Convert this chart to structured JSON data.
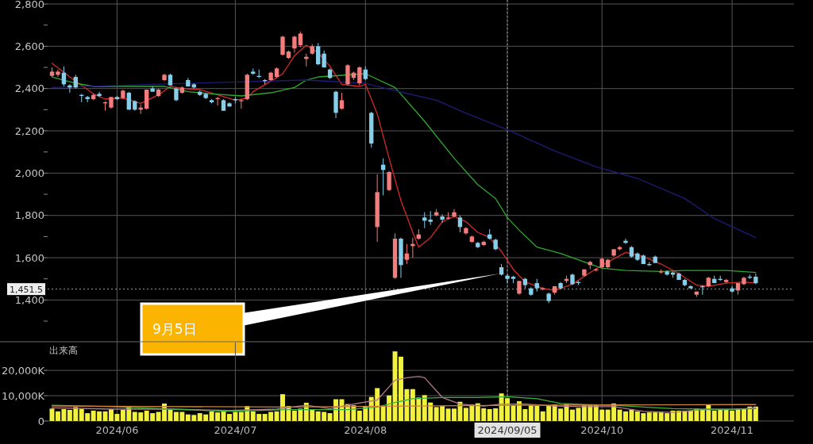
{
  "chart_data": [
    {
      "type": "candlestick",
      "categories": [
        null,
        null,
        null,
        null,
        null,
        null,
        null,
        null,
        null,
        null,
        null,
        "2024/06",
        null,
        null,
        null,
        null,
        null,
        null,
        null,
        null,
        null,
        null,
        null,
        null,
        null,
        null,
        null,
        null,
        null,
        null,
        null,
        "2024/07",
        null,
        null,
        null,
        null,
        null,
        null,
        null,
        null,
        null,
        null,
        null,
        null,
        null,
        null,
        null,
        null,
        null,
        null,
        null,
        null,
        null,
        "2024/08",
        null,
        null,
        null,
        null,
        null,
        null,
        null,
        null,
        null,
        null,
        null,
        null,
        null,
        null,
        null,
        null,
        null,
        null,
        null,
        null,
        null,
        null,
        null,
        "2024/09/05",
        null,
        null,
        null,
        null,
        null,
        null,
        null,
        null,
        null,
        null,
        null,
        null,
        null,
        null,
        null,
        "2024/10",
        null,
        null,
        null,
        null,
        null,
        null,
        null,
        null,
        null,
        null,
        null,
        null,
        null,
        null,
        null,
        null,
        null,
        null,
        null,
        null,
        null,
        "2024/11",
        null,
        null,
        null,
        null
      ],
      "ohlc": [
        [
          2460,
          2500,
          2455,
          2480
        ],
        [
          2465,
          2490,
          2455,
          2480
        ],
        [
          2475,
          2505,
          2410,
          2420
        ],
        [
          2415,
          2420,
          2380,
          2405
        ],
        [
          2455,
          2465,
          2400,
          2405
        ],
        [
          2370,
          2375,
          2335,
          2365
        ],
        [
          2360,
          2365,
          2335,
          2350
        ],
        [
          2350,
          2375,
          2345,
          2370
        ],
        [
          2375,
          2385,
          2360,
          2365
        ],
        [
          2330,
          2340,
          2295,
          2335
        ],
        [
          2310,
          2360,
          2305,
          2360
        ],
        [
          2360,
          2365,
          2345,
          2350
        ],
        [
          2355,
          2395,
          2350,
          2390
        ],
        [
          2380,
          2385,
          2300,
          2300
        ],
        [
          2340,
          2345,
          2295,
          2300
        ],
        [
          2300,
          2325,
          2280,
          2310
        ],
        [
          2305,
          2395,
          2300,
          2395
        ],
        [
          2400,
          2410,
          2385,
          2385
        ],
        [
          2365,
          2400,
          2360,
          2395
        ],
        [
          2440,
          2470,
          2435,
          2465
        ],
        [
          2465,
          2470,
          2415,
          2415
        ],
        [
          2400,
          2405,
          2340,
          2345
        ],
        [
          2380,
          2410,
          2375,
          2405
        ],
        [
          2440,
          2450,
          2410,
          2410
        ],
        [
          2420,
          2425,
          2400,
          2405
        ],
        [
          2385,
          2390,
          2365,
          2370
        ],
        [
          2375,
          2380,
          2350,
          2355
        ],
        [
          2345,
          2350,
          2330,
          2335
        ],
        [
          2350,
          2360,
          2320,
          2355
        ],
        [
          2345,
          2350,
          2295,
          2295
        ],
        [
          2330,
          2335,
          2315,
          2315
        ],
        [
          2350,
          2360,
          2330,
          2345
        ],
        [
          2340,
          2350,
          2305,
          2345
        ],
        [
          2350,
          2470,
          2345,
          2465
        ],
        [
          2480,
          2495,
          2465,
          2470
        ],
        [
          2460,
          2490,
          2450,
          2455
        ],
        [
          2440,
          2445,
          2420,
          2435
        ],
        [
          2440,
          2480,
          2435,
          2475
        ],
        [
          2455,
          2500,
          2450,
          2495
        ],
        [
          2560,
          2650,
          2555,
          2645
        ],
        [
          2545,
          2580,
          2540,
          2575
        ],
        [
          2590,
          2650,
          2570,
          2645
        ],
        [
          2605,
          2670,
          2595,
          2660
        ],
        [
          2540,
          2565,
          2505,
          2550
        ],
        [
          2565,
          2610,
          2560,
          2600
        ],
        [
          2600,
          2615,
          2510,
          2515
        ],
        [
          2565,
          2580,
          2500,
          2500
        ],
        [
          2490,
          2495,
          2445,
          2450
        ],
        [
          2385,
          2390,
          2260,
          2285
        ],
        [
          2305,
          2380,
          2300,
          2345
        ],
        [
          2420,
          2515,
          2415,
          2510
        ],
        [
          2450,
          2480,
          2440,
          2475
        ],
        [
          2425,
          2505,
          2415,
          2500
        ],
        [
          2490,
          2505,
          2440,
          2445
        ],
        [
          2285,
          2290,
          2120,
          2140
        ],
        [
          1745,
          1995,
          1675,
          1910
        ],
        [
          2040,
          2070,
          1895,
          2015
        ],
        [
          1920,
          2010,
          1915,
          2005
        ],
        [
          1505,
          1715,
          1500,
          1690
        ],
        [
          1690,
          1695,
          1505,
          1565
        ],
        [
          1590,
          1665,
          1570,
          1620
        ],
        [
          1655,
          1695,
          1600,
          1665
        ],
        [
          1690,
          1735,
          1685,
          1710
        ],
        [
          1790,
          1815,
          1740,
          1775
        ],
        [
          1780,
          1820,
          1755,
          1770
        ],
        [
          1800,
          1830,
          1795,
          1815
        ],
        [
          1795,
          1805,
          1765,
          1780
        ],
        [
          1785,
          1815,
          1780,
          1790
        ],
        [
          1795,
          1830,
          1790,
          1815
        ],
        [
          1790,
          1800,
          1720,
          1745
        ],
        [
          1715,
          1745,
          1710,
          1740
        ],
        [
          1675,
          1705,
          1670,
          1700
        ],
        [
          1670,
          1675,
          1645,
          1650
        ],
        [
          1660,
          1680,
          1655,
          1675
        ],
        [
          1710,
          1735,
          1685,
          1690
        ],
        [
          1685,
          1690,
          1635,
          1640
        ],
        [
          1555,
          1570,
          1515,
          1520
        ],
        [
          1515,
          1520,
          1480,
          1500
        ],
        [
          1510,
          1515,
          1480,
          1500
        ],
        [
          1430,
          1490,
          1425,
          1490
        ],
        [
          1500,
          1505,
          1455,
          1470
        ],
        [
          1455,
          1460,
          1420,
          1425
        ],
        [
          1480,
          1500,
          1440,
          1455
        ],
        [
          1450,
          1460,
          1445,
          1455
        ],
        [
          1430,
          1435,
          1385,
          1395
        ],
        [
          1435,
          1465,
          1425,
          1465
        ],
        [
          1480,
          1485,
          1450,
          1455
        ],
        [
          1490,
          1515,
          1480,
          1500
        ],
        [
          1520,
          1525,
          1470,
          1475
        ],
        [
          1485,
          1490,
          1470,
          1480
        ],
        [
          1515,
          1545,
          1510,
          1545
        ],
        [
          1565,
          1585,
          1545,
          1580
        ],
        [
          1540,
          1550,
          1535,
          1545
        ],
        [
          1555,
          1600,
          1550,
          1595
        ],
        [
          1555,
          1595,
          1550,
          1590
        ],
        [
          1610,
          1640,
          1605,
          1640
        ],
        [
          1640,
          1655,
          1635,
          1650
        ],
        [
          1680,
          1690,
          1665,
          1670
        ],
        [
          1650,
          1655,
          1600,
          1605
        ],
        [
          1620,
          1625,
          1585,
          1590
        ],
        [
          1610,
          1615,
          1570,
          1570
        ],
        [
          1570,
          1580,
          1560,
          1565
        ],
        [
          1605,
          1610,
          1575,
          1575
        ],
        [
          1530,
          1545,
          1525,
          1535
        ],
        [
          1535,
          1540,
          1515,
          1520
        ],
        [
          1530,
          1535,
          1505,
          1520
        ],
        [
          1525,
          1530,
          1495,
          1495
        ],
        [
          1495,
          1500,
          1465,
          1470
        ],
        [
          1465,
          1470,
          1455,
          1455
        ],
        [
          1425,
          1440,
          1415,
          1440
        ],
        [
          1465,
          1470,
          1425,
          1460
        ],
        [
          1465,
          1510,
          1460,
          1505
        ],
        [
          1500,
          1515,
          1480,
          1480
        ],
        [
          1500,
          1515,
          1490,
          1495
        ],
        [
          1485,
          1500,
          1480,
          1495
        ],
        [
          1455,
          1465,
          1435,
          1440
        ],
        [
          1445,
          1480,
          1425,
          1480
        ],
        [
          1475,
          1510,
          1470,
          1505
        ],
        [
          1510,
          1520,
          1500,
          1505
        ],
        [
          1510,
          1525,
          1475,
          1480
        ]
      ],
      "colors": [
        "#f47c7c",
        "#f47c7c",
        "#87ceeb",
        "#87ceeb",
        "#87ceeb",
        "#87ceeb",
        "#87ceeb",
        "#f47c7c",
        "#87ceeb",
        "#f47c7c",
        "#f47c7c",
        "#87ceeb",
        "#f47c7c",
        "#87ceeb",
        "#87ceeb",
        "#f47c7c",
        "#f47c7c",
        "#87ceeb",
        "#f47c7c",
        "#f47c7c",
        "#87ceeb",
        "#87ceeb",
        "#f47c7c",
        "#87ceeb",
        "#87ceeb",
        "#87ceeb",
        "#87ceeb",
        "#87ceeb",
        "#f47c7c",
        "#87ceeb",
        "#87ceeb",
        "#87ceeb",
        "#f47c7c",
        "#f47c7c",
        "#87ceeb",
        "#87ceeb",
        "#87ceeb",
        "#f47c7c",
        "#f47c7c",
        "#f47c7c",
        "#f47c7c",
        "#f47c7c",
        "#f47c7c",
        "#f47c7c",
        "#f47c7c",
        "#87ceeb",
        "#87ceeb",
        "#87ceeb",
        "#87ceeb",
        "#f47c7c",
        "#f47c7c",
        "#f47c7c",
        "#f47c7c",
        "#87ceeb",
        "#87ceeb",
        "#f47c7c",
        "#87ceeb",
        "#f47c7c",
        "#f47c7c",
        "#87ceeb",
        "#f47c7c",
        "#f47c7c",
        "#f47c7c",
        "#87ceeb",
        "#87ceeb",
        "#f47c7c",
        "#87ceeb",
        "#f47c7c",
        "#f47c7c",
        "#87ceeb",
        "#f47c7c",
        "#f47c7c",
        "#87ceeb",
        "#f47c7c",
        "#87ceeb",
        "#87ceeb",
        "#87ceeb",
        "#87ceeb",
        "#87ceeb",
        "#f47c7c",
        "#87ceeb",
        "#87ceeb",
        "#87ceeb",
        "#f47c7c",
        "#87ceeb",
        "#f47c7c",
        "#87ceeb",
        "#f47c7c",
        "#87ceeb",
        "#87ceeb",
        "#f47c7c",
        "#f47c7c",
        "#f47c7c",
        "#f47c7c",
        "#f47c7c",
        "#f47c7c",
        "#f47c7c",
        "#87ceeb",
        "#87ceeb",
        "#87ceeb",
        "#87ceeb",
        "#87ceeb",
        "#87ceeb",
        "#f47c7c",
        "#87ceeb",
        "#87ceeb",
        "#87ceeb",
        "#87ceeb",
        "#87ceeb",
        "#f47c7c",
        "#87ceeb",
        "#f47c7c",
        "#87ceeb",
        "#87ceeb",
        "#f47c7c",
        "#87ceeb",
        "#f47c7c",
        "#f47c7c",
        "#87ceeb",
        "#87ceeb"
      ],
      "series": [
        {
          "type": "line",
          "color": "#d42a2a",
          "values": [
            2520,
            null,
            null,
            2455,
            null,
            null,
            null,
            2375,
            null,
            2350,
            null,
            null,
            2355,
            null,
            null,
            2330,
            null,
            null,
            2370,
            null,
            2410,
            null,
            2400,
            null,
            null,
            2395,
            null,
            null,
            2370,
            null,
            null,
            2345,
            null,
            2355,
            2385,
            null,
            null,
            2435,
            null,
            2470,
            null,
            2555,
            null,
            2605,
            null,
            2570,
            null,
            2505,
            null,
            2420,
            null,
            null,
            2410,
            2420,
            null,
            2280,
            null,
            2070,
            null,
            1870,
            null,
            1720,
            1650,
            null,
            1695,
            null,
            1770,
            null,
            1795,
            null,
            1770,
            null,
            1720,
            null,
            1695,
            null,
            1630,
            null,
            1545,
            null,
            1485,
            null,
            null,
            1455,
            null,
            1445,
            null,
            null,
            1475,
            null,
            null,
            1530,
            null,
            null,
            1580,
            null,
            null,
            1625,
            null,
            null,
            1605,
            null,
            null,
            1570,
            null,
            null,
            1525,
            null,
            null,
            1470,
            null,
            1465,
            null,
            null,
            1480,
            null,
            null,
            1485,
            null,
            1480
          ]
        },
        {
          "type": "line",
          "color": "#2fa82f",
          "values": [
            2455,
            null,
            null,
            null,
            2425,
            null,
            null,
            2410,
            null,
            null,
            null,
            null,
            null,
            null,
            null,
            null,
            null,
            null,
            null,
            2410,
            null,
            null,
            null,
            2385,
            null,
            null,
            null,
            2375,
            null,
            null,
            null,
            null,
            2365,
            null,
            null,
            null,
            null,
            2380,
            null,
            null,
            null,
            2405,
            null,
            2440,
            null,
            2455,
            null,
            null,
            null,
            null,
            null,
            null,
            null,
            2470,
            null,
            null,
            null,
            null,
            2405,
            null,
            null,
            null,
            null,
            2245,
            null,
            null,
            null,
            null,
            2070,
            null,
            null,
            null,
            1945,
            null,
            null,
            1880,
            null,
            1790,
            null,
            1730,
            null,
            null,
            1650,
            null,
            null,
            null,
            1620,
            null,
            null,
            null,
            null,
            null,
            null,
            1550,
            null,
            null,
            null,
            1540,
            null,
            null,
            null,
            null,
            null,
            1535,
            null,
            null,
            null,
            1540,
            null,
            null,
            null,
            null,
            null,
            null,
            1540,
            null,
            null,
            null,
            null,
            1530
          ]
        },
        {
          "type": "line",
          "color": "#1c1c78",
          "values": [
            2405,
            null,
            null,
            null,
            null,
            null,
            null,
            null,
            null,
            null,
            null,
            null,
            null,
            null,
            null,
            null,
            null,
            2420,
            null,
            null,
            null,
            null,
            null,
            null,
            null,
            null,
            null,
            null,
            null,
            null,
            2430,
            null,
            null,
            null,
            null,
            null,
            null,
            null,
            null,
            null,
            null,
            null,
            null,
            2440,
            null,
            null,
            null,
            null,
            null,
            null,
            null,
            null,
            null,
            2425,
            null,
            null,
            null,
            null,
            2390,
            null,
            null,
            null,
            null,
            null,
            null,
            2345,
            null,
            null,
            null,
            2295,
            null,
            null,
            null,
            null,
            null,
            null,
            null,
            2205,
            null,
            null,
            null,
            null,
            null,
            null,
            null,
            2105,
            null,
            null,
            null,
            null,
            null,
            null,
            2030,
            null,
            null,
            null,
            null,
            null,
            null,
            1975,
            null,
            null,
            null,
            null,
            null,
            null,
            null,
            1880,
            null,
            null,
            null,
            null,
            1785,
            null,
            null,
            null,
            null,
            null,
            null,
            1695
          ]
        }
      ],
      "ylim": [
        1200,
        2800
      ],
      "yticks": [
        {
          "value": 1300,
          "label": null
        },
        {
          "value": 1400,
          "label": "1,400"
        },
        {
          "value": 1500,
          "label": null
        },
        {
          "value": 1600,
          "label": "1,600"
        },
        {
          "value": 1700,
          "label": null
        },
        {
          "value": 1800,
          "label": "1,800"
        },
        {
          "value": 1900,
          "label": null
        },
        {
          "value": 2000,
          "label": "2,000"
        },
        {
          "value": 2100,
          "label": null
        },
        {
          "value": 2200,
          "label": "2,200"
        },
        {
          "value": 2300,
          "label": null
        },
        {
          "value": 2400,
          "label": "2,400"
        },
        {
          "value": 2500,
          "label": null
        },
        {
          "value": 2600,
          "label": "2,600"
        },
        {
          "value": 2700,
          "label": null
        },
        {
          "value": 2800,
          "label": "2,800"
        }
      ],
      "grid": true,
      "tick_labels": "y",
      "ref_lines": [
        {
          "axis": "y",
          "value": 1451.5,
          "label": "1,451.5",
          "line_style": "dotted",
          "color": "#9a9a9a"
        },
        {
          "axis": "x",
          "value": "2024/09/05",
          "line_style": "dotted",
          "color": "#9a9a9a"
        }
      ],
      "annotations": [
        "9月5日"
      ]
    },
    {
      "type": "bar",
      "title": "出来高",
      "categories": [
        null,
        null,
        null,
        null,
        null,
        null,
        null,
        null,
        null,
        null,
        null,
        "2024/06",
        null,
        null,
        null,
        null,
        null,
        null,
        null,
        null,
        null,
        null,
        null,
        null,
        null,
        null,
        null,
        null,
        null,
        null,
        null,
        "2024/07",
        null,
        null,
        null,
        null,
        null,
        null,
        null,
        null,
        null,
        null,
        null,
        null,
        null,
        null,
        null,
        null,
        null,
        null,
        null,
        null,
        null,
        "2024/08",
        null,
        null,
        null,
        null,
        null,
        null,
        null,
        null,
        null,
        null,
        null,
        null,
        null,
        null,
        null,
        null,
        null,
        null,
        null,
        null,
        null,
        null,
        null,
        "2024/09/05",
        null,
        null,
        null,
        null,
        null,
        null,
        null,
        null,
        null,
        null,
        null,
        null,
        null,
        null,
        null,
        "2024/10",
        null,
        null,
        null,
        null,
        null,
        null,
        null,
        null,
        null,
        null,
        null,
        null,
        null,
        null,
        null,
        null,
        null,
        null,
        null,
        null,
        null,
        "2024/11",
        null,
        null,
        null,
        null
      ],
      "series": [
        {
          "type": "bar",
          "color": "#f2f23c",
          "values": [
            4900,
            3800,
            4700,
            4400,
            5500,
            4700,
            3100,
            4100,
            3800,
            3800,
            4700,
            2800,
            4400,
            5500,
            3600,
            3400,
            4100,
            3100,
            3600,
            6900,
            4400,
            3600,
            3600,
            2600,
            2400,
            3100,
            2600,
            3800,
            3400,
            4100,
            2800,
            3600,
            3600,
            5900,
            3800,
            2800,
            2800,
            3600,
            3800,
            10600,
            5900,
            4100,
            4900,
            7200,
            4700,
            3800,
            3600,
            3100,
            8600,
            8600,
            6700,
            6200,
            4100,
            5900,
            9500,
            13000,
            5700,
            10100,
            27500,
            25400,
            12600,
            12600,
            9300,
            10200,
            7300,
            5500,
            5900,
            4900,
            4900,
            7600,
            5200,
            6500,
            7000,
            5000,
            4700,
            5000,
            10900,
            9000,
            6200,
            7800,
            4700,
            6200,
            6000,
            3800,
            6200,
            6500,
            4900,
            6700,
            4500,
            5200,
            6200,
            6200,
            6200,
            4500,
            4500,
            6900,
            4500,
            3800,
            4500,
            3800,
            3100,
            3400,
            3400,
            3400,
            3100,
            4100,
            4100,
            4100,
            4100,
            4900,
            4500,
            6500,
            4100,
            4500,
            4500,
            4100,
            4900,
            4900,
            5700,
            5700
          ]
        },
        {
          "type": "line",
          "color": "#b4788c",
          "values": [
            5200,
            null,
            null,
            null,
            null,
            null,
            null,
            null,
            null,
            null,
            4700,
            null,
            null,
            null,
            null,
            null,
            null,
            null,
            null,
            null,
            4700,
            null,
            null,
            null,
            null,
            null,
            null,
            null,
            null,
            null,
            4200,
            null,
            null,
            null,
            null,
            null,
            null,
            null,
            4700,
            null,
            null,
            null,
            null,
            6200,
            null,
            null,
            null,
            4900,
            null,
            null,
            null,
            6700,
            null,
            null,
            null,
            8300,
            null,
            null,
            16100,
            null,
            17100,
            null,
            17600,
            17100,
            null,
            null,
            9300,
            null,
            null,
            6700,
            null,
            null,
            null,
            5900,
            null,
            null,
            6700,
            null,
            null,
            null,
            6700,
            null,
            null,
            null,
            null,
            5900,
            null,
            null,
            null,
            null,
            5700,
            null,
            null,
            null,
            null,
            5700,
            null,
            null,
            null,
            null,
            3800,
            null,
            null,
            null,
            null,
            3400,
            null,
            null,
            null,
            null,
            4500,
            null,
            null,
            null,
            null,
            4500,
            null,
            null,
            null,
            5200
          ]
        },
        {
          "type": "line",
          "color": "#3cb43c",
          "values": [
            6200,
            null,
            null,
            null,
            null,
            null,
            null,
            null,
            null,
            null,
            5700,
            null,
            null,
            null,
            null,
            null,
            null,
            null,
            null,
            null,
            4700,
            null,
            null,
            null,
            null,
            null,
            null,
            null,
            null,
            null,
            3800,
            null,
            null,
            null,
            null,
            null,
            null,
            null,
            null,
            null,
            4500,
            null,
            null,
            null,
            null,
            null,
            null,
            null,
            null,
            null,
            4500,
            null,
            null,
            null,
            null,
            5500,
            null,
            null,
            7300,
            null,
            8300,
            8800,
            null,
            null,
            null,
            null,
            9300,
            null,
            null,
            null,
            null,
            null,
            9300,
            null,
            null,
            null,
            null,
            9600,
            null,
            null,
            null,
            null,
            8800,
            null,
            null,
            null,
            6900,
            null,
            null,
            null,
            6500,
            null,
            null,
            null,
            null,
            6200,
            null,
            null,
            null,
            null,
            5500,
            null,
            null,
            null,
            null,
            4900,
            null,
            null,
            null,
            null,
            4700,
            null,
            null,
            null,
            null,
            4700,
            null,
            null,
            null,
            4900
          ]
        },
        {
          "type": "line",
          "color": "#c8823c",
          "values": [
            5900,
            null,
            null,
            null,
            null,
            null,
            null,
            null,
            null,
            null,
            null,
            null,
            null,
            null,
            null,
            null,
            null,
            null,
            null,
            null,
            null,
            null,
            null,
            null,
            null,
            null,
            null,
            null,
            null,
            null,
            null,
            null,
            null,
            null,
            null,
            null,
            null,
            null,
            null,
            null,
            5500,
            null,
            null,
            null,
            null,
            null,
            null,
            null,
            null,
            null,
            null,
            null,
            null,
            null,
            null,
            null,
            null,
            null,
            null,
            null,
            5900,
            null,
            null,
            null,
            null,
            null,
            null,
            null,
            null,
            null,
            null,
            null,
            null,
            null,
            null,
            null,
            null,
            null,
            null,
            null,
            6200,
            null,
            null,
            null,
            null,
            null,
            null,
            null,
            null,
            null,
            null,
            null,
            null,
            null,
            null,
            null,
            null,
            null,
            null,
            null,
            6400,
            null,
            null,
            null,
            null,
            null,
            null,
            null,
            null,
            null,
            null,
            null,
            null,
            null,
            null,
            null,
            null,
            null,
            null,
            6500
          ]
        }
      ],
      "ylim": [
        0,
        31000
      ],
      "yticks": [
        0,
        {
          "value": 10000,
          "label": "10,000K"
        },
        {
          "value": 20000,
          "label": "20,000K"
        }
      ],
      "grid": true,
      "ref_lines": [
        {
          "axis": "x",
          "value": "2024/09/05",
          "line_style": "dotted",
          "color": "#9a9a9a"
        }
      ]
    }
  ]
}
